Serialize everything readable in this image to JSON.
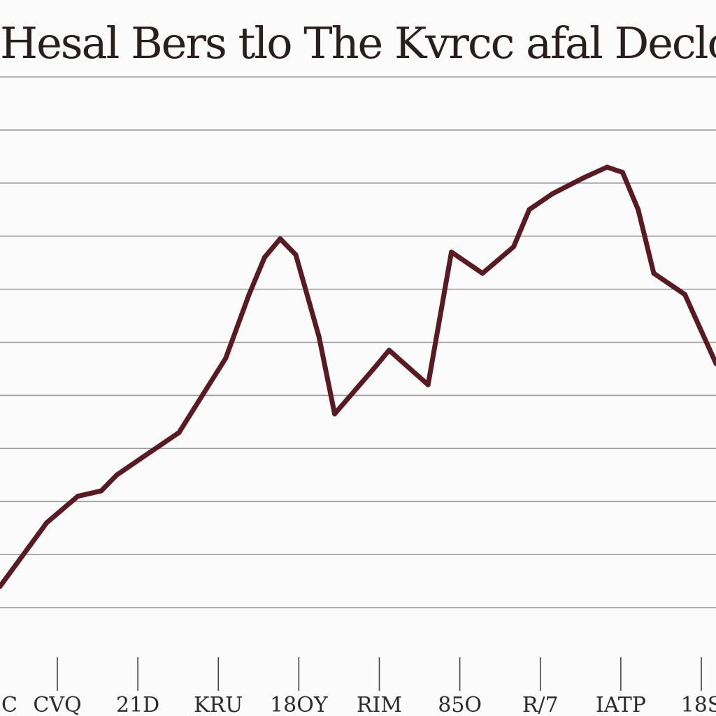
{
  "chart_data": {
    "type": "line",
    "title": "Hesal Bers tlo The Kvrcc afal Declo",
    "xlabel": "",
    "ylabel": "",
    "x_ticks": [
      "C",
      "CVQ",
      "21D",
      "KRU",
      "18OY",
      "RIM",
      "85O",
      "R/7",
      "IATP",
      "18S"
    ],
    "x": [
      0,
      0.6,
      1.0,
      1.3,
      1.5,
      1.8,
      2.3,
      2.9,
      3.2,
      3.4,
      3.6,
      3.8,
      4.1,
      4.3,
      4.8,
      5.0,
      5.5,
      5.8,
      6.2,
      6.6,
      6.8,
      7.1,
      7.5,
      7.8,
      8.0,
      8.2,
      8.4,
      8.8,
      9.2
    ],
    "y": [
      1.4,
      2.6,
      3.1,
      3.2,
      3.5,
      3.8,
      4.3,
      5.7,
      6.9,
      7.6,
      7.95,
      7.65,
      6.1,
      4.65,
      5.5,
      5.85,
      5.2,
      7.7,
      7.3,
      7.8,
      8.5,
      8.8,
      9.1,
      9.3,
      9.2,
      8.5,
      7.3,
      6.9,
      5.6
    ],
    "ylim": [
      0,
      11
    ],
    "xlim": [
      0,
      9.2
    ],
    "grid": true,
    "legend": "none",
    "colors": {
      "line": "#5a1a22",
      "grid": "#9a9a9a",
      "tick": "#444444",
      "background": "#fbfbfb"
    }
  }
}
